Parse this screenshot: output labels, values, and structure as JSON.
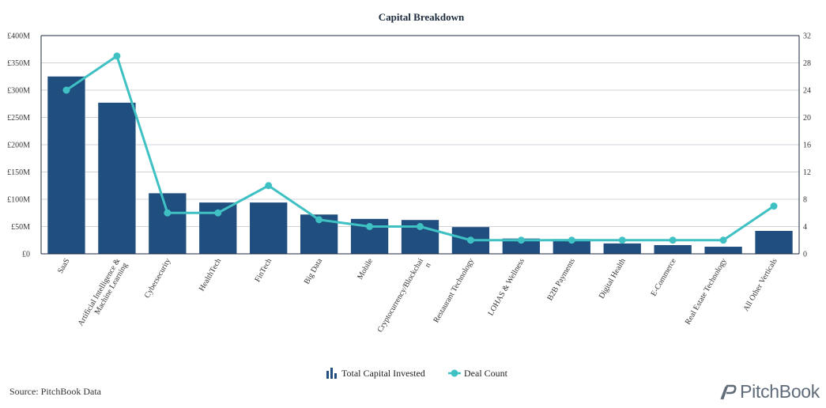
{
  "chart_data": {
    "type": "bar",
    "title": "Capital Breakdown",
    "categories": [
      "SaaS",
      "Artificial Intelligence & Machine Learning",
      "Cybersecurity",
      "HealthTech",
      "FinTech",
      "Big Data",
      "Mobile",
      "Cryptocurrency/Blockchain",
      "Restaurant Technology",
      "LOHAS & Wellness",
      "B2B Payments",
      "Digital Health",
      "E-Commerce",
      "Real Estate Technology",
      "All Other Verticals"
    ],
    "category_labels": [
      [
        "SaaS"
      ],
      [
        "Artificial Intelligence &",
        "Machine Learning"
      ],
      [
        "Cybersecurity"
      ],
      [
        "HealthTech"
      ],
      [
        "FinTech"
      ],
      [
        "Big Data"
      ],
      [
        "Mobile"
      ],
      [
        "Cryptocurrency/Blockchai",
        "n"
      ],
      [
        "Restaurant Technology"
      ],
      [
        "LOHAS & Wellness"
      ],
      [
        "B2B Payments"
      ],
      [
        "Digital Health"
      ],
      [
        "E-Commerce"
      ],
      [
        "Real Estate Technology"
      ],
      [
        "All Other Verticals"
      ]
    ],
    "series": [
      {
        "name": "Total Capital Invested",
        "type": "bar",
        "axis": "left",
        "color": "#1f4e7f",
        "values": [
          325,
          277,
          111,
          94,
          94,
          72,
          64,
          62,
          49,
          28,
          27,
          19,
          16,
          13,
          42
        ]
      },
      {
        "name": "Deal Count",
        "type": "line",
        "axis": "right",
        "color": "#3fc1c4",
        "values": [
          24,
          29,
          6,
          6,
          10,
          5,
          4,
          4,
          2,
          2,
          2,
          2,
          2,
          2,
          7
        ]
      }
    ],
    "y_left": {
      "ylim": [
        0,
        400
      ],
      "ticks": [
        0,
        50,
        100,
        150,
        200,
        250,
        300,
        350,
        400
      ],
      "tick_labels": [
        "£0",
        "£50M",
        "£100M",
        "£150M",
        "£200M",
        "£250M",
        "£300M",
        "£350M",
        "£400M"
      ]
    },
    "y_right": {
      "ylim": [
        0,
        32
      ],
      "ticks": [
        0,
        4,
        8,
        12,
        16,
        20,
        24,
        28,
        32
      ],
      "tick_labels": [
        "0",
        "4",
        "8",
        "12",
        "16",
        "20",
        "24",
        "28",
        "32"
      ]
    },
    "grid": true,
    "legend": "bottom-center"
  },
  "source": "Source: PitchBook Data",
  "logo_text": "PitchBook",
  "legend_icons": {
    "bar": "bar-chart-icon",
    "line": "line-marker-icon"
  }
}
